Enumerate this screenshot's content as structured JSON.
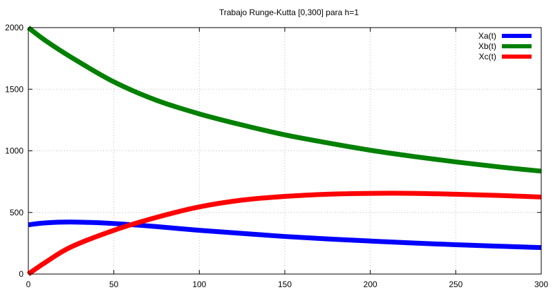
{
  "chart_data": {
    "type": "line",
    "title": "Trabajo Runge-Kutta [0,300] para h=1",
    "xlabel": "",
    "ylabel": "",
    "xlim": [
      0,
      300
    ],
    "ylim": [
      0,
      2000
    ],
    "xticks": [
      0,
      50,
      100,
      150,
      200,
      250,
      300
    ],
    "yticks": [
      0,
      500,
      1000,
      1500,
      2000
    ],
    "grid": true,
    "legend_position": "top-right",
    "x": [
      0,
      10,
      25,
      50,
      75,
      100,
      125,
      150,
      175,
      200,
      225,
      250,
      275,
      300
    ],
    "series": [
      {
        "name": "Xa(t)",
        "color": "#0000ff",
        "values": [
          400,
          415,
          422,
          410,
          385,
          355,
          330,
          305,
          285,
          268,
          252,
          238,
          226,
          215
        ]
      },
      {
        "name": "Xb(t)",
        "color": "#008000",
        "values": [
          2000,
          1895,
          1760,
          1560,
          1410,
          1300,
          1210,
          1130,
          1065,
          1005,
          955,
          910,
          870,
          835
        ]
      },
      {
        "name": "Xc(t)",
        "color": "#ff0000",
        "values": [
          0,
          95,
          220,
          355,
          460,
          545,
          600,
          630,
          648,
          655,
          655,
          648,
          638,
          625
        ]
      }
    ]
  }
}
